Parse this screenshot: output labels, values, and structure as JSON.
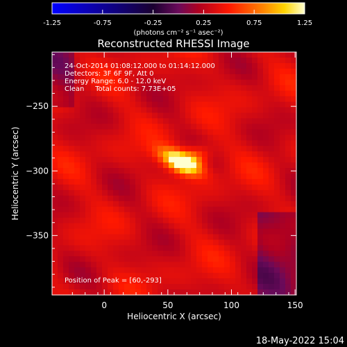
{
  "chart_data": {
    "type": "heatmap",
    "title": "Reconstructed RHESSI Image",
    "xlabel": "Heliocentric X (arcsec)",
    "ylabel": "Heliocentric Y (arcsec)",
    "xlim": [
      -41,
      151
    ],
    "ylim": [
      -396,
      -208
    ],
    "x_ticks": [
      0,
      50,
      100,
      150
    ],
    "y_ticks": [
      -250,
      -300,
      -350
    ],
    "colorbar": {
      "range": [
        -1.25,
        1.25
      ],
      "ticks": [
        "-1.25",
        "-0.75",
        "-0.25",
        "0.25",
        "0.75",
        "1.25"
      ],
      "units_label": "(photons cm⁻² s⁻¹ asec⁻²)"
    },
    "annotations": [
      "24-Oct-2014 01:08:12.000 to 01:14:12.000",
      "Detectors: 3F 6F 9F, Att 0",
      "Energy Range: 6.0 - 12.0 keV",
      "Clean     Total counts: 7.73E+05"
    ],
    "peak_label": "Position of Peak = [60,-293]",
    "peak": {
      "x": 60,
      "y": -293
    },
    "sources": [
      {
        "x": 60,
        "y": -293,
        "sx": 12,
        "sy": 5,
        "amp": 1.05,
        "angle_deg": -25
      },
      {
        "x": 70,
        "y": -290,
        "sx": 10,
        "sy": 6,
        "amp": 0.45,
        "angle_deg": 20
      }
    ],
    "background_level": 0.35
  },
  "footer": {
    "timestamp": "18-May-2022 15:04"
  }
}
